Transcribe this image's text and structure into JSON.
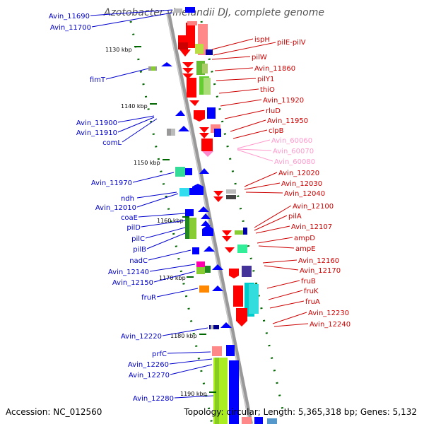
{
  "title": "Azotobacter vinelandii DJ, complete genome",
  "accession_text": "Accession: NC_012560",
  "topology_text": "Topology: circular; Length: 5,365,318 bp; Genes: 5,132",
  "colors": {
    "left_label": "#0000cc",
    "right_label": "#cc0000",
    "pink_label": "#ff99cc",
    "backbone": "#999999",
    "tick": "#006600"
  },
  "scale_marks": [
    "1130 kbp",
    "1140 kbp",
    "1150 kbp",
    "1160 kbp",
    "1170 kbp",
    "1180 kbp",
    "1190 kbp"
  ],
  "left_labels": [
    "Avin_11690",
    "Avin_11700",
    "fimT",
    "Avin_11900",
    "Avin_11910",
    "comL",
    "Avin_11970",
    "ndh",
    "Avin_12010",
    "coaE",
    "pilD",
    "pilC",
    "pilB",
    "nadC",
    "Avin_12140",
    "Avin_12150",
    "fruR",
    "Avin_12220",
    "prfC",
    "Avin_12260",
    "Avin_12270",
    "Avin_12280"
  ],
  "right_labels": [
    "ispH",
    "pilE-pilV",
    "pilW",
    "Avin_11860",
    "pilY1",
    "thiO",
    "Avin_11920",
    "rluD",
    "Avin_11950",
    "clpB",
    "Avin_12020",
    "Avin_12030",
    "Avin_12040",
    "Avin_12100",
    "pilA",
    "Avin_12107",
    "ampD",
    "ampE",
    "Avin_12160",
    "Avin_12170",
    "fruB",
    "fruK",
    "fruA",
    "Avin_12230",
    "Avin_12240"
  ],
  "pink_labels": [
    "Avin_60060",
    "Avin_60070",
    "Avin_60080"
  ]
}
